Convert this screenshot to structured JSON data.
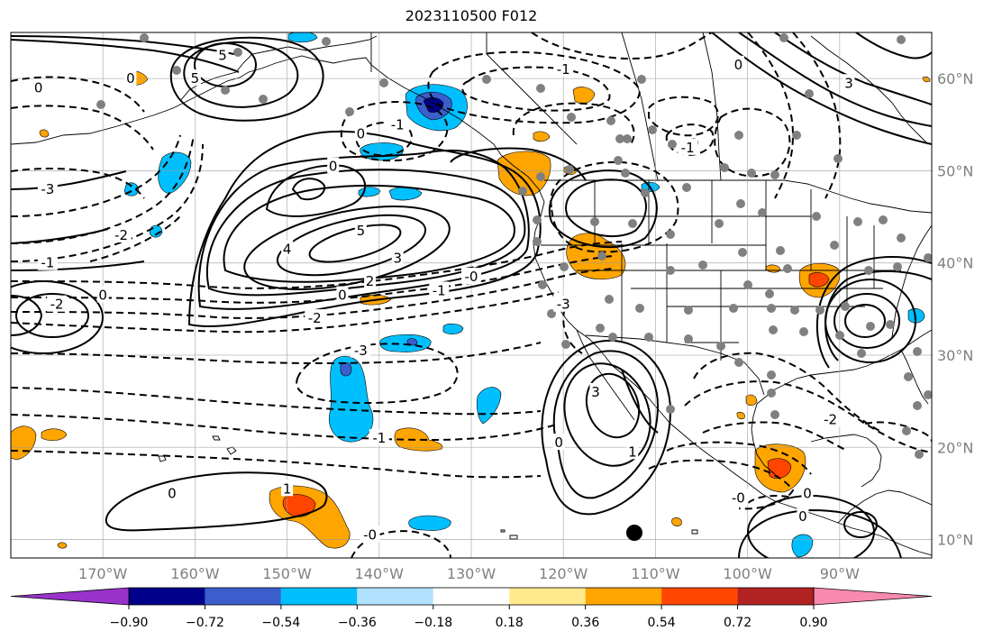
{
  "title": "2023110500 F012",
  "lon_ticks": [
    {
      "lon": -170,
      "label": "170°W"
    },
    {
      "lon": -160,
      "label": "160°W"
    },
    {
      "lon": -150,
      "label": "150°W"
    },
    {
      "lon": -140,
      "label": "140°W"
    },
    {
      "lon": -130,
      "label": "130°W"
    },
    {
      "lon": -120,
      "label": "120°W"
    },
    {
      "lon": -110,
      "label": "110°W"
    },
    {
      "lon": -100,
      "label": "100°W"
    },
    {
      "lon": -90,
      "label": "90°W"
    }
  ],
  "lat_ticks": [
    {
      "lat": 60,
      "label": "60°N"
    },
    {
      "lat": 50,
      "label": "50°N"
    },
    {
      "lat": 40,
      "label": "40°N"
    },
    {
      "lat": 30,
      "label": "30°N"
    },
    {
      "lat": 20,
      "label": "20°N"
    },
    {
      "lat": 10,
      "label": "10°N"
    }
  ],
  "colorbar": {
    "colors": [
      "#9933cc",
      "#00008b",
      "#3a5fcd",
      "#00bfff",
      "#b0e2ff",
      "#ffffff",
      "#ffe98a",
      "#ffa500",
      "#ff4500",
      "#b22222",
      "#f88aaf"
    ],
    "tick_labels": [
      "−0.90",
      "−0.72",
      "−0.54",
      "−0.36",
      "−0.18",
      "0.18",
      "0.36",
      "0.54",
      "0.72",
      "0.90"
    ]
  },
  "contour_labels": [
    {
      "text": "5",
      "lon": -157,
      "lat": 62.5
    },
    {
      "text": "5",
      "lon": -160,
      "lat": 60
    },
    {
      "text": "0",
      "lon": -167,
      "lat": 60
    },
    {
      "text": "0",
      "lon": -177,
      "lat": 59
    },
    {
      "text": "-3",
      "lon": -176,
      "lat": 48
    },
    {
      "text": "-2",
      "lon": -168,
      "lat": 43
    },
    {
      "text": "-1",
      "lon": -176,
      "lat": 40
    },
    {
      "text": "-2",
      "lon": -175,
      "lat": 35.5
    },
    {
      "text": "0",
      "lon": -170,
      "lat": 36.5
    },
    {
      "text": "5",
      "lon": -142,
      "lat": 43.5
    },
    {
      "text": "4",
      "lon": -150,
      "lat": 41.5
    },
    {
      "text": "3",
      "lon": -138,
      "lat": 40.5
    },
    {
      "text": "2",
      "lon": -141,
      "lat": 38
    },
    {
      "text": "0",
      "lon": -144,
      "lat": 36.5
    },
    {
      "text": "-1",
      "lon": -133.5,
      "lat": 37
    },
    {
      "text": "-0",
      "lon": -130,
      "lat": 38.5
    },
    {
      "text": "-2",
      "lon": -147,
      "lat": 34
    },
    {
      "text": "0",
      "lon": -142,
      "lat": 54
    },
    {
      "text": "0",
      "lon": -145,
      "lat": 50.5
    },
    {
      "text": "-1",
      "lon": -138,
      "lat": 55
    },
    {
      "text": "-3",
      "lon": -120,
      "lat": 35.5
    },
    {
      "text": "-3",
      "lon": -142,
      "lat": 30.5
    },
    {
      "text": "-1",
      "lon": -140,
      "lat": 21
    },
    {
      "text": "0",
      "lon": -162.5,
      "lat": 15
    },
    {
      "text": "1",
      "lon": -150,
      "lat": 15.5
    },
    {
      "text": "-0",
      "lon": -141,
      "lat": 10.5
    },
    {
      "text": "3",
      "lon": -116.5,
      "lat": 26
    },
    {
      "text": "0",
      "lon": -120.5,
      "lat": 20.5
    },
    {
      "text": "1",
      "lon": -112.5,
      "lat": 19.5
    },
    {
      "text": "-1",
      "lon": -120,
      "lat": 61
    },
    {
      "text": "0",
      "lon": -101,
      "lat": 61.5
    },
    {
      "text": "3",
      "lon": -89,
      "lat": 59.5
    },
    {
      "text": "-1",
      "lon": -106.5,
      "lat": 52.5
    },
    {
      "text": "-2",
      "lon": -91,
      "lat": 23
    },
    {
      "text": "-0",
      "lon": -101,
      "lat": 14.5
    },
    {
      "text": "0",
      "lon": -93.5,
      "lat": 15
    },
    {
      "text": "0",
      "lon": -94,
      "lat": 12.5
    }
  ]
}
